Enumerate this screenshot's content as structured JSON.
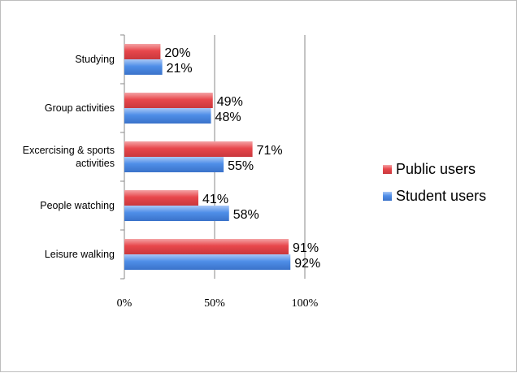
{
  "chart_data": {
    "type": "bar",
    "orientation": "horizontal",
    "categories": [
      "Studying",
      "Group activities",
      "Excercising & sports activities",
      "People watching",
      "Leisure walking"
    ],
    "category_lines": [
      [
        "Studying"
      ],
      [
        "Group activities"
      ],
      [
        "Excercising & sports",
        "activities"
      ],
      [
        "People watching"
      ],
      [
        "Leisure walking"
      ]
    ],
    "series": [
      {
        "name": "Public users",
        "values": [
          20,
          49,
          71,
          41,
          91
        ],
        "labels": [
          "20%",
          "49%",
          "71%",
          "41%",
          "91%"
        ],
        "color": "#e8474c"
      },
      {
        "name": "Student users",
        "values": [
          21,
          48,
          55,
          58,
          92
        ],
        "labels": [
          "21%",
          "48%",
          "55%",
          "58%",
          "92%"
        ],
        "color": "#4f8ee8"
      }
    ],
    "xlim": [
      0,
      100
    ],
    "xticks": [
      0,
      50,
      100
    ],
    "xtick_labels": [
      "0%",
      "50%",
      "100%"
    ],
    "grid": "vertical",
    "legend_position": "right",
    "title": "",
    "xlabel": "",
    "ylabel": ""
  }
}
